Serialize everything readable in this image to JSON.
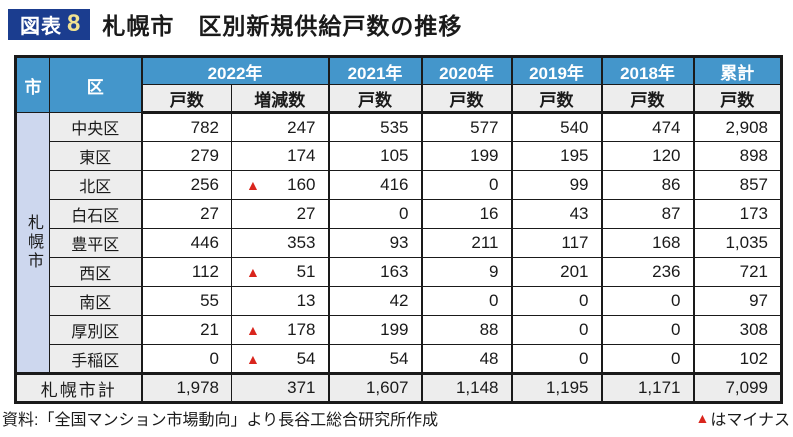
{
  "title": {
    "tag_word": "図表",
    "tag_number": "8",
    "text": "札幌市　区別新規供給戸数の推移"
  },
  "colors": {
    "year_header_blue": "#4496cb",
    "lavender_cell": "#cdd7ee",
    "gray_cell": "#ededed",
    "title_tag_navy": "#1b3d8f",
    "title_tag_number_yellow": "#f0e291",
    "negative_red": "#d9251d",
    "border_black": "#1a1a1a"
  },
  "icons": {
    "negative_triangle": "▲"
  },
  "table": {
    "headers": {
      "city": "市",
      "ward": "区",
      "y2022": "2022年",
      "y2021": "2021年",
      "y2020": "2020年",
      "y2019": "2019年",
      "y2018": "2018年",
      "cumulative": "累計"
    },
    "sub_headers": {
      "units": "戸数",
      "change": "増減数"
    },
    "city_label": "札幌市",
    "rows": [
      {
        "ward": "中央区",
        "change_negative": false,
        "values": [
          "782",
          "247",
          "535",
          "577",
          "540",
          "474",
          "2,908"
        ]
      },
      {
        "ward": "東区",
        "change_negative": false,
        "values": [
          "279",
          "174",
          "105",
          "199",
          "195",
          "120",
          "898"
        ]
      },
      {
        "ward": "北区",
        "change_negative": true,
        "values": [
          "256",
          "160",
          "416",
          "0",
          "99",
          "86",
          "857"
        ]
      },
      {
        "ward": "白石区",
        "change_negative": false,
        "values": [
          "27",
          "27",
          "0",
          "16",
          "43",
          "87",
          "173"
        ]
      },
      {
        "ward": "豊平区",
        "change_negative": false,
        "values": [
          "446",
          "353",
          "93",
          "211",
          "117",
          "168",
          "1,035"
        ]
      },
      {
        "ward": "西区",
        "change_negative": true,
        "values": [
          "112",
          "51",
          "163",
          "9",
          "201",
          "236",
          "721"
        ]
      },
      {
        "ward": "南区",
        "change_negative": false,
        "values": [
          "55",
          "13",
          "42",
          "0",
          "0",
          "0",
          "97"
        ]
      },
      {
        "ward": "厚別区",
        "change_negative": true,
        "values": [
          "21",
          "178",
          "199",
          "88",
          "0",
          "0",
          "308"
        ]
      },
      {
        "ward": "手稲区",
        "change_negative": true,
        "values": [
          "0",
          "54",
          "54",
          "48",
          "0",
          "0",
          "102"
        ]
      }
    ],
    "total_row": {
      "label": "札幌市計",
      "change_negative": false,
      "values": [
        "1,978",
        "371",
        "1,607",
        "1,148",
        "1,195",
        "1,171",
        "7,099"
      ]
    }
  },
  "footer": {
    "source": "資料:「全国マンション市場動向」より長谷工総合研究所作成",
    "note_text": "はマイナス"
  }
}
